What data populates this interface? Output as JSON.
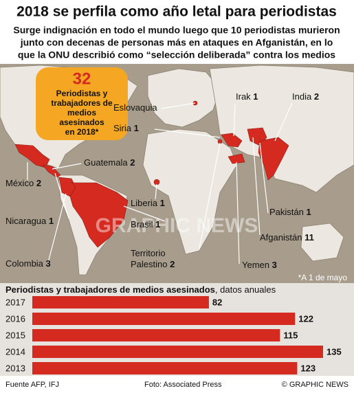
{
  "header": {
    "title": "2018 se perfila como año letal para periodistas",
    "subtitle_lines": [
      "Surge indignación en todo el mundo luego que 10 periodistas murieron",
      "junto con decenas de personas más en ataques en Afganistán, en lo",
      "que la ONU describió como “selección deliberada” contra los medios"
    ]
  },
  "callout": {
    "number": "32",
    "lines": [
      "Periodistas y",
      "trabajadores de",
      "medios",
      "asesinados",
      "en 2018*"
    ]
  },
  "map": {
    "countries": [
      {
        "name": "Eslovaquia"
      },
      {
        "name": "Irak",
        "count": "1"
      },
      {
        "name": "India",
        "count": "2"
      },
      {
        "name": "Siria",
        "count": "1"
      },
      {
        "name": "Guatemala",
        "count": "2"
      },
      {
        "name": "México",
        "count": "2"
      },
      {
        "name": "Liberia",
        "count": "1"
      },
      {
        "name": "Nicaragua",
        "count": "1"
      },
      {
        "name": "Brasil",
        "count": "1"
      },
      {
        "name": "Pakistán",
        "count": "1"
      },
      {
        "name": "Afganistán",
        "count": "11"
      },
      {
        "name": "Territorio",
        "name2": "Palestino",
        "count": "2"
      },
      {
        "name": "Colombia",
        "count": "3"
      },
      {
        "name": "Yemen",
        "count": "3"
      }
    ],
    "footnote": "*A 1 de mayo",
    "watermark": "GRAPHIC NEWS"
  },
  "chart_data": {
    "type": "bar",
    "orientation": "horizontal",
    "title": "Periodistas y trabajadores de medios asesinados",
    "subtitle": ", datos anuales",
    "categories": [
      "2017",
      "2016",
      "2015",
      "2014",
      "2013"
    ],
    "values": [
      82,
      122,
      115,
      135,
      123
    ],
    "color": "#d42a1f"
  },
  "footer": {
    "source": "Fuente AFP, IFJ",
    "photo": "Foto: Associated Press",
    "copyright": "© GRAPHIC NEWS"
  }
}
